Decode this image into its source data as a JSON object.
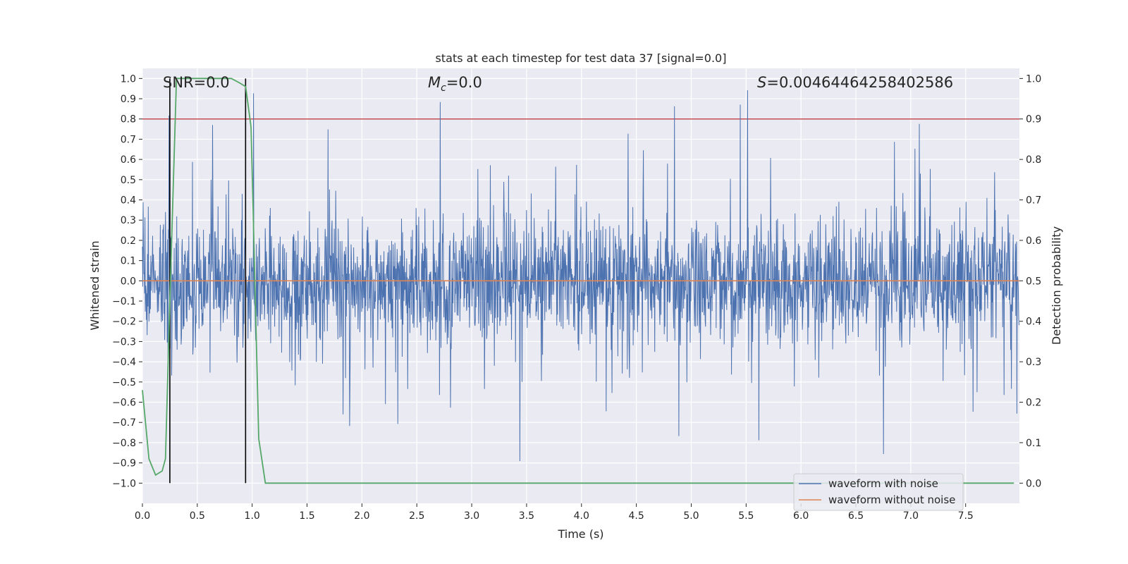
{
  "chart_data": {
    "type": "line",
    "title": "stats at each timestep for test data 37 [signal=0.0]",
    "xlabel": "Time (s)",
    "ylabel_left": "Whitened strain",
    "ylabel_right": "Detection probability",
    "xlim": [
      0.0,
      7.99
    ],
    "ylim_left": [
      -1.1,
      1.05
    ],
    "ylim_right": [
      -0.05,
      1.025
    ],
    "x_ticks": [
      "0.0",
      "0.5",
      "1.0",
      "1.5",
      "2.0",
      "2.5",
      "3.0",
      "3.5",
      "4.0",
      "4.5",
      "5.0",
      "5.5",
      "6.0",
      "6.5",
      "7.0",
      "7.5"
    ],
    "x_tick_values": [
      0.0,
      0.5,
      1.0,
      1.5,
      2.0,
      2.5,
      3.0,
      3.5,
      4.0,
      4.5,
      5.0,
      5.5,
      6.0,
      6.5,
      7.0,
      7.5
    ],
    "y_left_ticks": [
      "1.0",
      "0.9",
      "0.8",
      "0.7",
      "0.6",
      "0.5",
      "0.4",
      "0.3",
      "0.2",
      "0.1",
      "0.0",
      "−0.1",
      "−0.2",
      "−0.3",
      "−0.4",
      "−0.5",
      "−0.6",
      "−0.7",
      "−0.8",
      "−0.9",
      "−1.0"
    ],
    "y_left_tick_values": [
      1.0,
      0.9,
      0.8,
      0.7,
      0.6,
      0.5,
      0.4,
      0.3,
      0.2,
      0.1,
      0.0,
      -0.1,
      -0.2,
      -0.3,
      -0.4,
      -0.5,
      -0.6,
      -0.7,
      -0.8,
      -0.9,
      -1.0
    ],
    "y_right_ticks": [
      "1.0",
      "0.9",
      "0.8",
      "0.7",
      "0.6",
      "0.5",
      "0.4",
      "0.3",
      "0.2",
      "0.1",
      "0.0"
    ],
    "y_right_tick_values": [
      1.0,
      0.9,
      0.8,
      0.7,
      0.6,
      0.5,
      0.4,
      0.3,
      0.2,
      0.1,
      0.0
    ],
    "annotations": {
      "snr": "SNR=0.0",
      "mc_symbol": "M",
      "mc_sub": "c",
      "mc_value": "=0.0",
      "s_symbol": "S",
      "s_value": "=0.00464464258402586"
    },
    "series": [
      {
        "name": "waveform with noise",
        "color": "#4c72b0",
        "axis": "left",
        "note": "dense whitened noise, core amplitude about ±0.35, spikes to about ±0.95",
        "duration": 7.99,
        "seed": 37
      },
      {
        "name": "waveform without noise",
        "color": "#dd8452",
        "axis": "left",
        "x": [
          0.0,
          7.99
        ],
        "y": [
          0.0,
          0.0
        ]
      },
      {
        "name": "detection probability",
        "color": "#55a868",
        "axis": "right",
        "x": [
          0.0,
          0.06,
          0.12,
          0.18,
          0.21,
          0.25,
          0.31,
          0.44,
          0.69,
          0.81,
          0.88,
          0.94,
          0.99,
          1.06,
          1.12,
          1.19,
          1.31,
          7.94
        ],
        "y": [
          0.23,
          0.06,
          0.02,
          0.03,
          0.06,
          0.45,
          1.0,
          1.0,
          1.0,
          1.0,
          0.99,
          0.98,
          0.88,
          0.11,
          0.0,
          0.0,
          0.0,
          0.0
        ]
      }
    ],
    "hlines": [
      {
        "axis": "right",
        "value": 0.9,
        "color": "#c44e52"
      },
      {
        "axis": "right",
        "value": 0.5,
        "color": "#ffffff"
      }
    ],
    "vlines": [
      {
        "x": 0.25,
        "y0": 0.0,
        "y1": 1.0,
        "color": "#000000"
      },
      {
        "x": 0.94,
        "y0": 0.0,
        "y1": 1.0,
        "color": "#000000"
      }
    ],
    "legend": {
      "location": "lower-right",
      "entries": [
        {
          "label": "waveform with noise",
          "color": "#4c72b0"
        },
        {
          "label": "waveform without noise",
          "color": "#dd8452"
        }
      ]
    },
    "background": "#eaeaf2",
    "grid": true
  }
}
